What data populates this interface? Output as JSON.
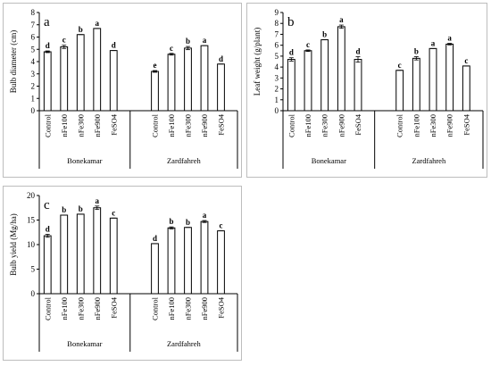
{
  "chart_data": [
    {
      "type": "bar",
      "panel_label": "a",
      "ylabel": "Bulb diameter (cm)",
      "ylim": [
        0,
        8
      ],
      "yticks": [
        0,
        1,
        2,
        3,
        4,
        5,
        6,
        7,
        8
      ],
      "groups": [
        {
          "name": "Bonekamar",
          "categories": [
            "Control",
            "nFe100",
            "nFe300",
            "nFe900",
            "FeSO4"
          ],
          "values": [
            4.8,
            5.2,
            6.2,
            6.7,
            4.9
          ],
          "errors": [
            0.07,
            0.13,
            0.0,
            0.0,
            0.0
          ],
          "letters": [
            "d",
            "c",
            "b",
            "a",
            "d"
          ]
        },
        {
          "name": "Zardfahreh",
          "categories": [
            "Control",
            "nFe100",
            "nFe300",
            "nFe900",
            "FeSO4"
          ],
          "values": [
            3.2,
            4.6,
            5.1,
            5.3,
            3.8
          ],
          "errors": [
            0.07,
            0.07,
            0.13,
            0.0,
            0.0
          ],
          "letters": [
            "e",
            "c",
            "b",
            "a",
            "d"
          ]
        }
      ]
    },
    {
      "type": "bar",
      "panel_label": "b",
      "ylabel": "Leaf weight (g/plant)",
      "ylim": [
        0,
        9
      ],
      "yticks": [
        0,
        1,
        2,
        3,
        4,
        5,
        6,
        7,
        8,
        9
      ],
      "groups": [
        {
          "name": "Bonekamar",
          "categories": [
            "Control",
            "nFe100",
            "nFe300",
            "nFe900",
            "FeSO4"
          ],
          "values": [
            4.7,
            5.5,
            6.5,
            7.7,
            4.7
          ],
          "errors": [
            0.15,
            0.07,
            0.0,
            0.15,
            0.25
          ],
          "letters": [
            "d",
            "c",
            "b",
            "a",
            "d"
          ]
        },
        {
          "name": "Zardfahreh",
          "categories": [
            "Control",
            "nFe100",
            "nFe300",
            "nFe900",
            "FeSO4"
          ],
          "values": [
            3.7,
            4.8,
            5.7,
            6.1,
            4.1
          ],
          "errors": [
            0.0,
            0.15,
            0.0,
            0.07,
            0.0
          ],
          "letters": [
            "c",
            "b",
            "a",
            "a",
            "c"
          ]
        }
      ]
    },
    {
      "type": "bar",
      "panel_label": "c",
      "ylabel": "Bulb yield (Mg/ha)",
      "ylim": [
        0,
        20
      ],
      "yticks": [
        0,
        5,
        10,
        15,
        20
      ],
      "groups": [
        {
          "name": "Bonekamar",
          "categories": [
            "Control",
            "nFe100",
            "nFe300",
            "nFe900",
            "FeSO4"
          ],
          "values": [
            11.8,
            16.0,
            16.2,
            17.5,
            15.4
          ],
          "errors": [
            0.3,
            0.0,
            0.0,
            0.35,
            0.0
          ],
          "letters": [
            "d",
            "b",
            "b",
            "a",
            "c"
          ]
        },
        {
          "name": "Zardfahreh",
          "categories": [
            "Control",
            "nFe100",
            "nFe300",
            "nFe900",
            "FeSO4"
          ],
          "values": [
            10.2,
            13.4,
            13.5,
            14.7,
            12.8
          ],
          "errors": [
            0.0,
            0.2,
            0.0,
            0.2,
            0.0
          ],
          "letters": [
            "d",
            "b",
            "b",
            "a",
            "c"
          ]
        }
      ]
    }
  ]
}
